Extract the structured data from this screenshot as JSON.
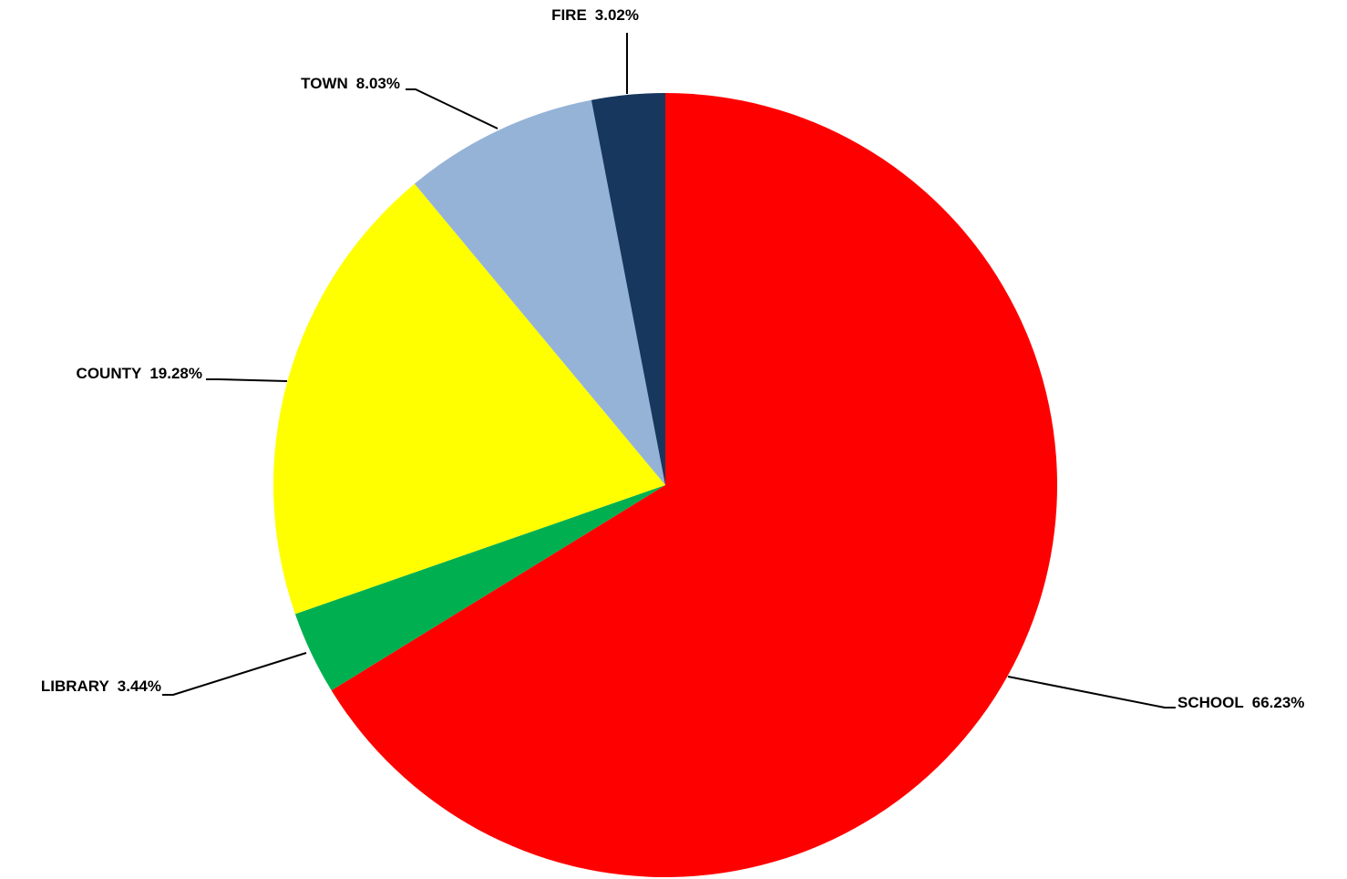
{
  "chart_data": {
    "type": "pie",
    "title": "",
    "start": "12 o'clock, clockwise",
    "slices": [
      {
        "label": "SCHOOL",
        "value": 66.23,
        "value_label": "66.23%",
        "color": "#ff0000"
      },
      {
        "label": "LIBRARY",
        "value": 3.44,
        "value_label": "3.44%",
        "color": "#00b050"
      },
      {
        "label": "COUNTY",
        "value": 19.28,
        "value_label": "19.28%",
        "color": "#ffff00"
      },
      {
        "label": "TOWN",
        "value": 8.03,
        "value_label": "8.03%",
        "color": "#95b3d7"
      },
      {
        "label": "FIRE",
        "value": 3.02,
        "value_label": "3.02%",
        "color": "#17375e"
      }
    ],
    "legend": "none"
  }
}
